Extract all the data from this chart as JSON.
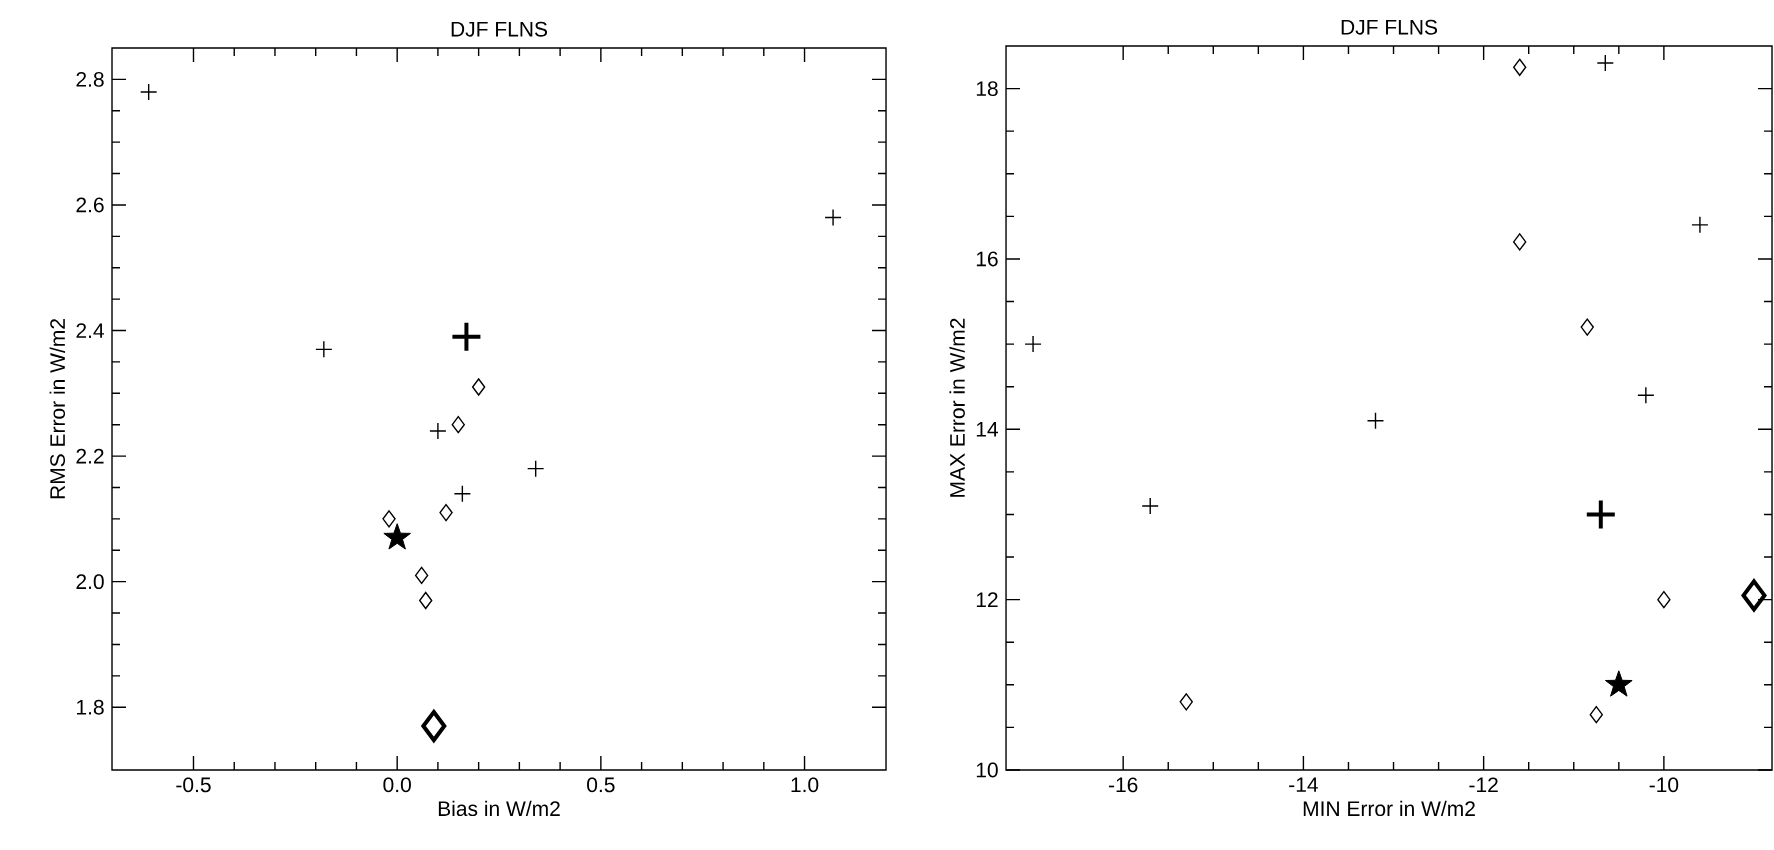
{
  "chart_data": [
    {
      "type": "scatter",
      "title": "DJF FLNS",
      "xlabel": "Bias in W/m2",
      "ylabel": "RMS Error in W/m2",
      "xlim": [
        -0.7,
        1.2
      ],
      "ylim": [
        1.7,
        2.85
      ],
      "xticks": [
        {
          "value": -0.5,
          "label": "-0.5"
        },
        {
          "value": 0,
          "label": "0.0"
        },
        {
          "value": 0.5,
          "label": "0.5"
        },
        {
          "value": 1,
          "label": "1.0"
        }
      ],
      "yticks": [
        {
          "value": 1.8,
          "label": "1.8"
        },
        {
          "value": 2,
          "label": "2.0"
        },
        {
          "value": 2.2,
          "label": "2.2"
        },
        {
          "value": 2.4,
          "label": "2.4"
        },
        {
          "value": 2.6,
          "label": "2.6"
        },
        {
          "value": 2.8,
          "label": "2.8"
        }
      ],
      "series": [
        {
          "color": "#000000",
          "marker": "cross",
          "x": [
            -0.61,
            1.07,
            -0.18,
            0.1,
            0.34,
            0.16
          ],
          "values": [
            2.78,
            2.58,
            2.37,
            2.24,
            2.18,
            2.14
          ]
        },
        {
          "color": "#000000",
          "marker": "diamond",
          "x": [
            0.2,
            0.15,
            0.12,
            -0.02,
            0.06,
            0.07
          ],
          "values": [
            2.31,
            2.25,
            2.11,
            2.1,
            2.01,
            1.97
          ]
        },
        {
          "color": "#000000",
          "marker": "cross",
          "x": [
            0.17
          ],
          "values": [
            2.39
          ]
        },
        {
          "color": "#000000",
          "marker": "diamond",
          "x": [
            0.09
          ],
          "values": [
            1.77
          ]
        },
        {
          "color": "#000000",
          "marker": "star",
          "x": [
            0.0
          ],
          "values": [
            2.07
          ]
        }
      ]
    },
    {
      "type": "scatter",
      "title": "DJF FLNS",
      "xlabel": "MIN Error in W/m2",
      "ylabel": "MAX Error in W/m2",
      "xlim": [
        -17.3,
        -8.8
      ],
      "ylim": [
        10,
        18.5
      ],
      "xticks": [
        -16,
        -14,
        -12,
        -10
      ],
      "yticks": [
        10,
        12,
        14,
        16,
        18
      ],
      "series": [
        {
          "color": "#000000",
          "marker": "cross",
          "x": [
            -17.0,
            -15.7,
            -13.2,
            -10.65,
            -9.6,
            -10.2
          ],
          "values": [
            15.0,
            13.1,
            14.1,
            18.3,
            16.4,
            14.4
          ]
        },
        {
          "color": "#000000",
          "marker": "diamond",
          "x": [
            -11.6,
            -11.6,
            -10.85,
            -10.0,
            -15.3,
            -10.75
          ],
          "values": [
            18.25,
            16.2,
            15.2,
            12.0,
            10.8,
            10.65
          ]
        },
        {
          "color": "#000000",
          "marker": "cross",
          "x": [
            -10.7
          ],
          "values": [
            13.0
          ]
        },
        {
          "color": "#000000",
          "marker": "diamond",
          "x": [
            -9.0
          ],
          "values": [
            12.05
          ]
        },
        {
          "color": "#000000",
          "marker": "star",
          "x": [
            -10.5
          ],
          "values": [
            11.0
          ]
        }
      ]
    }
  ]
}
